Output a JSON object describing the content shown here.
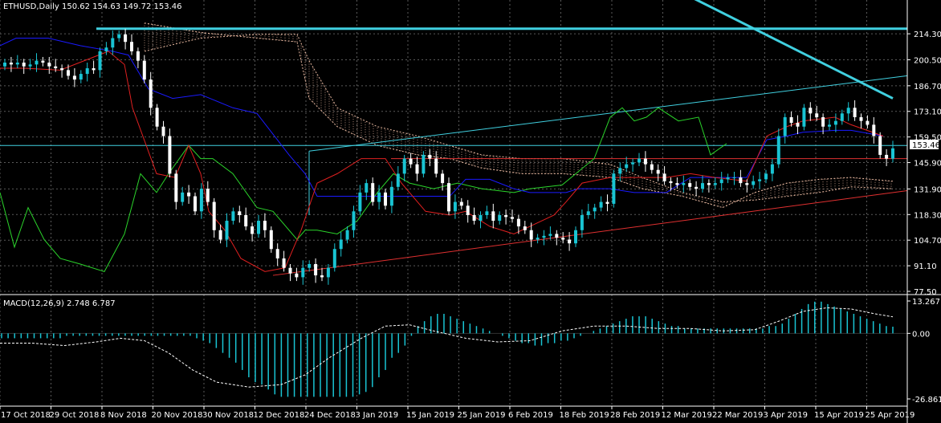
{
  "header": {
    "main_title": "ETHUSD,Daily  150.62 154.63 149.72 153.46",
    "macd_title": "MACD(12,26,9) 2.748 6.787"
  },
  "price_tag": "153.46",
  "colors": {
    "background": "#000000",
    "grid": "#5a5a5a",
    "bull": "#19c4d3",
    "bear": "#ffffff",
    "tenkan": "#e02020",
    "kijun": "#1a1aff",
    "chikou": "#2bd52b",
    "cloud": "#e8b8a0",
    "trend_cyan": "#40d0e0",
    "trend_red": "#e03030",
    "macd_hist": "#19c4d3",
    "macd_signal": "#ffffff"
  },
  "chart_data": [
    {
      "type": "candlestick",
      "title": "ETHUSD,Daily",
      "ohlc_last": {
        "open": 150.62,
        "high": 154.63,
        "low": 149.72,
        "close": 153.46
      },
      "ylim": [
        77.5,
        225
      ],
      "y_ticks": [
        "214.30",
        "200.50",
        "186.70",
        "173.10",
        "159.50",
        "145.90",
        "131.90",
        "118.30",
        "104.70",
        "91.10",
        "77.50"
      ],
      "x_ticks": [
        "17 Oct 2018",
        "29 Oct 2018",
        "8 Nov 2018",
        "20 Nov 2018",
        "30 Nov 2018",
        "12 Dec 2018",
        "24 Dec 2018",
        "3 Jan 2019",
        "15 Jan 2019",
        "25 Jan 2019",
        "6 Feb 2019",
        "18 Feb 2019",
        "28 Feb 2019",
        "12 Mar 2019",
        "22 Mar 2019",
        "3 Apr 2019",
        "15 Apr 2019",
        "25 Apr 2019"
      ],
      "grid": true,
      "close_series": [
        199,
        198,
        199,
        197,
        198,
        200,
        199,
        197,
        196,
        195,
        192,
        190,
        193,
        196,
        195,
        205,
        207,
        212,
        214,
        210,
        205,
        200,
        190,
        175,
        165,
        160,
        140,
        125,
        130,
        128,
        120,
        132,
        125,
        110,
        105,
        115,
        120,
        118,
        112,
        108,
        115,
        110,
        100,
        95,
        90,
        87,
        85,
        90,
        92,
        86,
        85,
        90,
        100,
        105,
        110,
        120,
        130,
        135,
        125,
        130,
        123,
        133,
        140,
        148,
        145,
        140,
        150,
        148,
        140,
        135,
        120,
        125,
        123,
        118,
        115,
        118,
        120,
        115,
        118,
        117,
        116,
        112,
        110,
        105,
        106,
        107,
        108,
        106,
        105,
        103,
        110,
        118,
        120,
        122,
        125,
        124,
        140,
        143,
        145,
        146,
        148,
        145,
        142,
        140,
        136,
        135,
        134,
        135,
        133,
        132,
        135,
        134,
        135,
        137,
        138,
        138,
        135,
        134,
        136,
        137,
        140,
        145,
        160,
        170,
        167,
        165,
        175,
        172,
        170,
        165,
        166,
        168,
        172,
        175,
        170,
        168,
        166,
        160,
        150,
        148,
        153.46
      ],
      "tenkan": [
        [
          0,
          196
        ],
        [
          30,
          196
        ],
        [
          75,
          195
        ],
        [
          105,
          200
        ],
        [
          135,
          205
        ],
        [
          155,
          198
        ],
        [
          165,
          175
        ],
        [
          195,
          140
        ],
        [
          218,
          138
        ],
        [
          235,
          155
        ],
        [
          250,
          140
        ],
        [
          260,
          120
        ],
        [
          280,
          110
        ],
        [
          300,
          95
        ],
        [
          330,
          88
        ],
        [
          355,
          90
        ],
        [
          375,
          110
        ],
        [
          395,
          135
        ],
        [
          420,
          140
        ],
        [
          450,
          148
        ],
        [
          480,
          148
        ],
        [
          500,
          135
        ],
        [
          530,
          120
        ],
        [
          560,
          118
        ],
        [
          580,
          120
        ],
        [
          610,
          112
        ],
        [
          640,
          108
        ],
        [
          660,
          112
        ],
        [
          690,
          118
        ],
        [
          705,
          125
        ],
        [
          725,
          135
        ],
        [
          760,
          138
        ],
        [
          790,
          138
        ],
        [
          830,
          138
        ],
        [
          860,
          140
        ],
        [
          890,
          138
        ],
        [
          930,
          136
        ],
        [
          955,
          160
        ],
        [
          980,
          165
        ],
        [
          1000,
          168
        ],
        [
          1040,
          170
        ],
        [
          1060,
          166
        ],
        [
          1100,
          160
        ]
      ],
      "kijun": [
        [
          0,
          208
        ],
        [
          20,
          212
        ],
        [
          60,
          212
        ],
        [
          100,
          208
        ],
        [
          140,
          205
        ],
        [
          160,
          203
        ],
        [
          185,
          185
        ],
        [
          215,
          180
        ],
        [
          250,
          182
        ],
        [
          290,
          175
        ],
        [
          320,
          172
        ],
        [
          360,
          150
        ],
        [
          380,
          140
        ],
        [
          395,
          128
        ],
        [
          440,
          128
        ],
        [
          480,
          128
        ],
        [
          500,
          128
        ],
        [
          530,
          128
        ],
        [
          560,
          128
        ],
        [
          580,
          137
        ],
        [
          610,
          137
        ],
        [
          640,
          132
        ],
        [
          660,
          130
        ],
        [
          690,
          130
        ],
        [
          705,
          130
        ],
        [
          720,
          132
        ],
        [
          760,
          132
        ],
        [
          790,
          130
        ],
        [
          830,
          130
        ],
        [
          860,
          138
        ],
        [
          930,
          138
        ],
        [
          955,
          158
        ],
        [
          980,
          160
        ],
        [
          1000,
          162
        ],
        [
          1040,
          163
        ],
        [
          1060,
          163
        ],
        [
          1100,
          160
        ]
      ],
      "chikou": [
        [
          0,
          130
        ],
        [
          18,
          101
        ],
        [
          35,
          122
        ],
        [
          55,
          105
        ],
        [
          75,
          95
        ],
        [
          100,
          92
        ],
        [
          130,
          88
        ],
        [
          155,
          108
        ],
        [
          175,
          140
        ],
        [
          195,
          130
        ],
        [
          210,
          140
        ],
        [
          235,
          155
        ],
        [
          250,
          148
        ],
        [
          265,
          148
        ],
        [
          290,
          140
        ],
        [
          320,
          122
        ],
        [
          340,
          120
        ],
        [
          370,
          105
        ],
        [
          380,
          110
        ],
        [
          395,
          110
        ],
        [
          420,
          108
        ],
        [
          445,
          115
        ],
        [
          470,
          130
        ],
        [
          490,
          140
        ],
        [
          510,
          135
        ],
        [
          540,
          132
        ],
        [
          570,
          135
        ],
        [
          600,
          132
        ],
        [
          640,
          130
        ],
        [
          660,
          132
        ],
        [
          700,
          134
        ],
        [
          740,
          148
        ],
        [
          760,
          170
        ],
        [
          775,
          175
        ],
        [
          790,
          168
        ],
        [
          805,
          170
        ],
        [
          820,
          175
        ],
        [
          845,
          168
        ],
        [
          870,
          170
        ],
        [
          885,
          150
        ],
        [
          905,
          156
        ]
      ],
      "trendlines": [
        {
          "color_key": "trend_cyan",
          "from": [
            385,
            152
          ],
          "to": [
            1130,
            192
          ]
        },
        {
          "color_key": "trend_red",
          "from": [
            340,
            86
          ],
          "to": [
            1130,
            131
          ]
        },
        {
          "color_key": "trend_red",
          "from": [
            487,
            148
          ],
          "to": [
            1130,
            148
          ]
        },
        {
          "color_key": "trend_cyan",
          "from": [
            0,
            155
          ],
          "to": [
            1130,
            155
          ]
        },
        {
          "color_key": "trend_cyan",
          "from": [
            120,
            217
          ],
          "to": [
            1130,
            217
          ]
        },
        {
          "color_key": "trend_cyan",
          "from": [
            855,
            235
          ],
          "to": [
            1112,
            180
          ]
        }
      ]
    },
    {
      "type": "histogram",
      "title": "MACD(12,26,9)",
      "values_last": {
        "macd": 2.748,
        "signal": 6.787
      },
      "ylim": [
        -26.861,
        13.267
      ],
      "y_ticks": [
        "13.267",
        "0.00",
        "-26.861"
      ],
      "grid": true,
      "hist": [
        -2,
        -2,
        -2,
        -2,
        -2,
        -2,
        -2,
        -2,
        -2,
        -2,
        -1,
        -1,
        -1,
        -1,
        -1,
        -1,
        -1,
        -1,
        -1,
        -1,
        -1,
        -1,
        -1,
        -1,
        -1,
        -1,
        -1,
        -1,
        -1,
        -1,
        -2,
        -3,
        -4,
        -6,
        -8,
        -10,
        -12,
        -15,
        -18,
        -20,
        -21,
        -23,
        -25,
        -26,
        -26,
        -26,
        -26,
        -26,
        -26,
        -26,
        -26,
        -26,
        -26,
        -26,
        -26,
        -25,
        -24,
        -22,
        -18,
        -15,
        -10,
        -8,
        -5,
        -1,
        3,
        5,
        7,
        8,
        8,
        7,
        6,
        5,
        4,
        3,
        2,
        1,
        0,
        -1,
        -2,
        -3,
        -4,
        -4,
        -5,
        -5,
        -4,
        -4,
        -3,
        -3,
        -2,
        -1,
        0,
        1,
        2,
        3,
        4,
        5,
        6,
        7,
        7,
        7,
        6,
        5,
        4,
        3,
        3,
        2,
        2,
        2,
        2,
        2,
        2,
        2,
        2,
        2,
        2,
        2,
        2,
        2,
        3,
        3,
        4,
        6,
        8,
        10,
        12,
        13,
        13,
        12,
        11,
        10,
        9,
        8,
        7,
        6,
        5,
        4,
        3,
        2.748
      ],
      "signal": [
        [
          0,
          -4
        ],
        [
          40,
          -4
        ],
        [
          80,
          -5
        ],
        [
          120,
          -3.5
        ],
        [
          150,
          -2
        ],
        [
          180,
          -3
        ],
        [
          210,
          -8
        ],
        [
          240,
          -15
        ],
        [
          270,
          -20
        ],
        [
          310,
          -22
        ],
        [
          350,
          -21
        ],
        [
          380,
          -17
        ],
        [
          410,
          -10
        ],
        [
          450,
          -2
        ],
        [
          480,
          3
        ],
        [
          510,
          3.5
        ],
        [
          540,
          1
        ],
        [
          580,
          -2
        ],
        [
          620,
          -3.5
        ],
        [
          660,
          -3
        ],
        [
          700,
          1
        ],
        [
          740,
          3
        ],
        [
          780,
          3
        ],
        [
          820,
          2
        ],
        [
          860,
          2
        ],
        [
          900,
          1
        ],
        [
          940,
          1.5
        ],
        [
          970,
          5
        ],
        [
          1000,
          9
        ],
        [
          1030,
          10.5
        ],
        [
          1060,
          10
        ],
        [
          1090,
          8
        ],
        [
          1112,
          6.787
        ]
      ]
    }
  ]
}
